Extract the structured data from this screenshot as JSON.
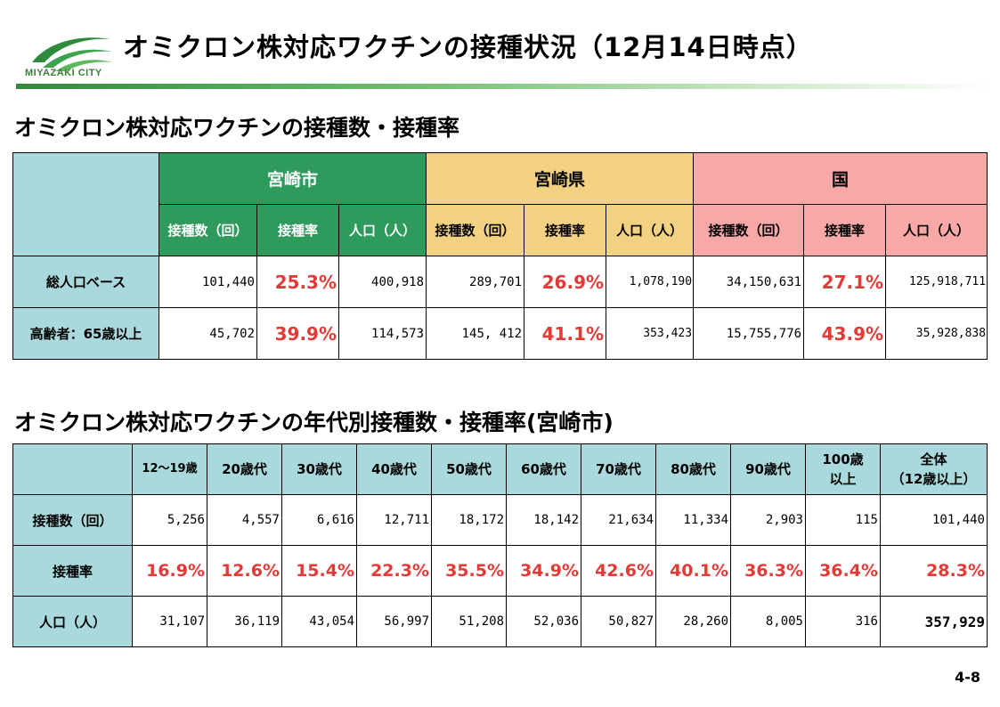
{
  "header": {
    "logo_text": "MIYAZAKI CITY",
    "title": "オミクロン株対応ワクチンの接種状況（12月14日時点）"
  },
  "section1": {
    "title": "オミクロン株対応ワクチンの接種数・接種率",
    "regions": [
      "宮崎市",
      "宮崎県",
      "国"
    ],
    "subheaders": [
      "接種数（回）",
      "接種率",
      "人口（人）"
    ],
    "rows": [
      {
        "label": "総人口ベース",
        "city": {
          "count": "101,440",
          "rate": "25.3%",
          "pop": "400,918"
        },
        "pref": {
          "count": "289,701",
          "rate": "26.9%",
          "pop": "1,078,190"
        },
        "nat": {
          "count": "34,150,631",
          "rate": "27.1%",
          "pop": "125,918,711"
        }
      },
      {
        "label": "高齢者：65歳以上",
        "city": {
          "count": "45,702",
          "rate": "39.9%",
          "pop": "114,573"
        },
        "pref": {
          "count": "145, 412",
          "rate": "41.1%",
          "pop": "353,423"
        },
        "nat": {
          "count": "15,755,776",
          "rate": "43.9%",
          "pop": "35,928,838"
        }
      }
    ]
  },
  "section2": {
    "title": "オミクロン株対応ワクチンの年代別接種数・接種率(宮崎市)",
    "columns": [
      "12～19歳",
      "20歳代",
      "30歳代",
      "40歳代",
      "50歳代",
      "60歳代",
      "70歳代",
      "80歳代",
      "90歳代"
    ],
    "col_100_line1": "100歳",
    "col_100_line2": "以上",
    "col_total_line1": "全体",
    "col_total_line2": "（12歳以上）",
    "row_labels": [
      "接種数（回）",
      "接種率",
      "人口（人）"
    ],
    "counts": [
      "5,256",
      "4,557",
      "6,616",
      "12,711",
      "18,172",
      "18,142",
      "21,634",
      "11,334",
      "2,903",
      "115",
      "101,440"
    ],
    "rates": [
      "16.9%",
      "12.6%",
      "15.4%",
      "22.3%",
      "35.5%",
      "34.9%",
      "42.6%",
      "40.1%",
      "36.3%",
      "36.4%",
      "28.3%"
    ],
    "populations": [
      "31,107",
      "36,119",
      "43,054",
      "56,997",
      "51,208",
      "52,036",
      "50,827",
      "28,260",
      "8,005",
      "316",
      "357,929"
    ]
  },
  "colors": {
    "city": "#2e9a5c",
    "pref": "#f3d182",
    "nat": "#f9a8a8",
    "label_bg": "#a9d9dc",
    "rate_red": "#e53935"
  },
  "page_number": "4-8"
}
